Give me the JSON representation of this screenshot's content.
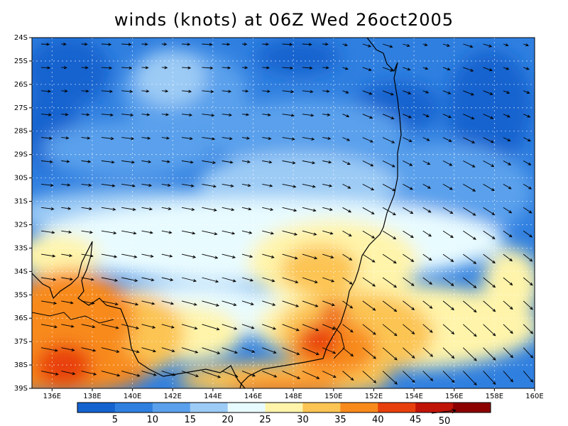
{
  "title": "winds (knots) at 06Z Wed 26oct2005",
  "lat_ticks": [
    "24S",
    "25S",
    "26S",
    "27S",
    "28S",
    "29S",
    "30S",
    "31S",
    "32S",
    "33S",
    "34S",
    "35S",
    "36S",
    "37S",
    "38S",
    "39S"
  ],
  "lon_ticks": [
    "136E",
    "138E",
    "140E",
    "142E",
    "144E",
    "146E",
    "148E",
    "150E",
    "152E",
    "154E",
    "156E",
    "158E",
    "160E"
  ],
  "colorbar": {
    "colors": [
      "#1563cf",
      "#2f7fe0",
      "#5aa0ec",
      "#9ccbf5",
      "#e8fbff",
      "#fff4aa",
      "#fcc452",
      "#f88a1c",
      "#e8400c",
      "#c01408",
      "#8c0000"
    ],
    "labels": [
      "5",
      "10",
      "15",
      "20",
      "25",
      "30",
      "35",
      "40",
      "45"
    ]
  },
  "reference_vector": {
    "label": "50"
  }
}
